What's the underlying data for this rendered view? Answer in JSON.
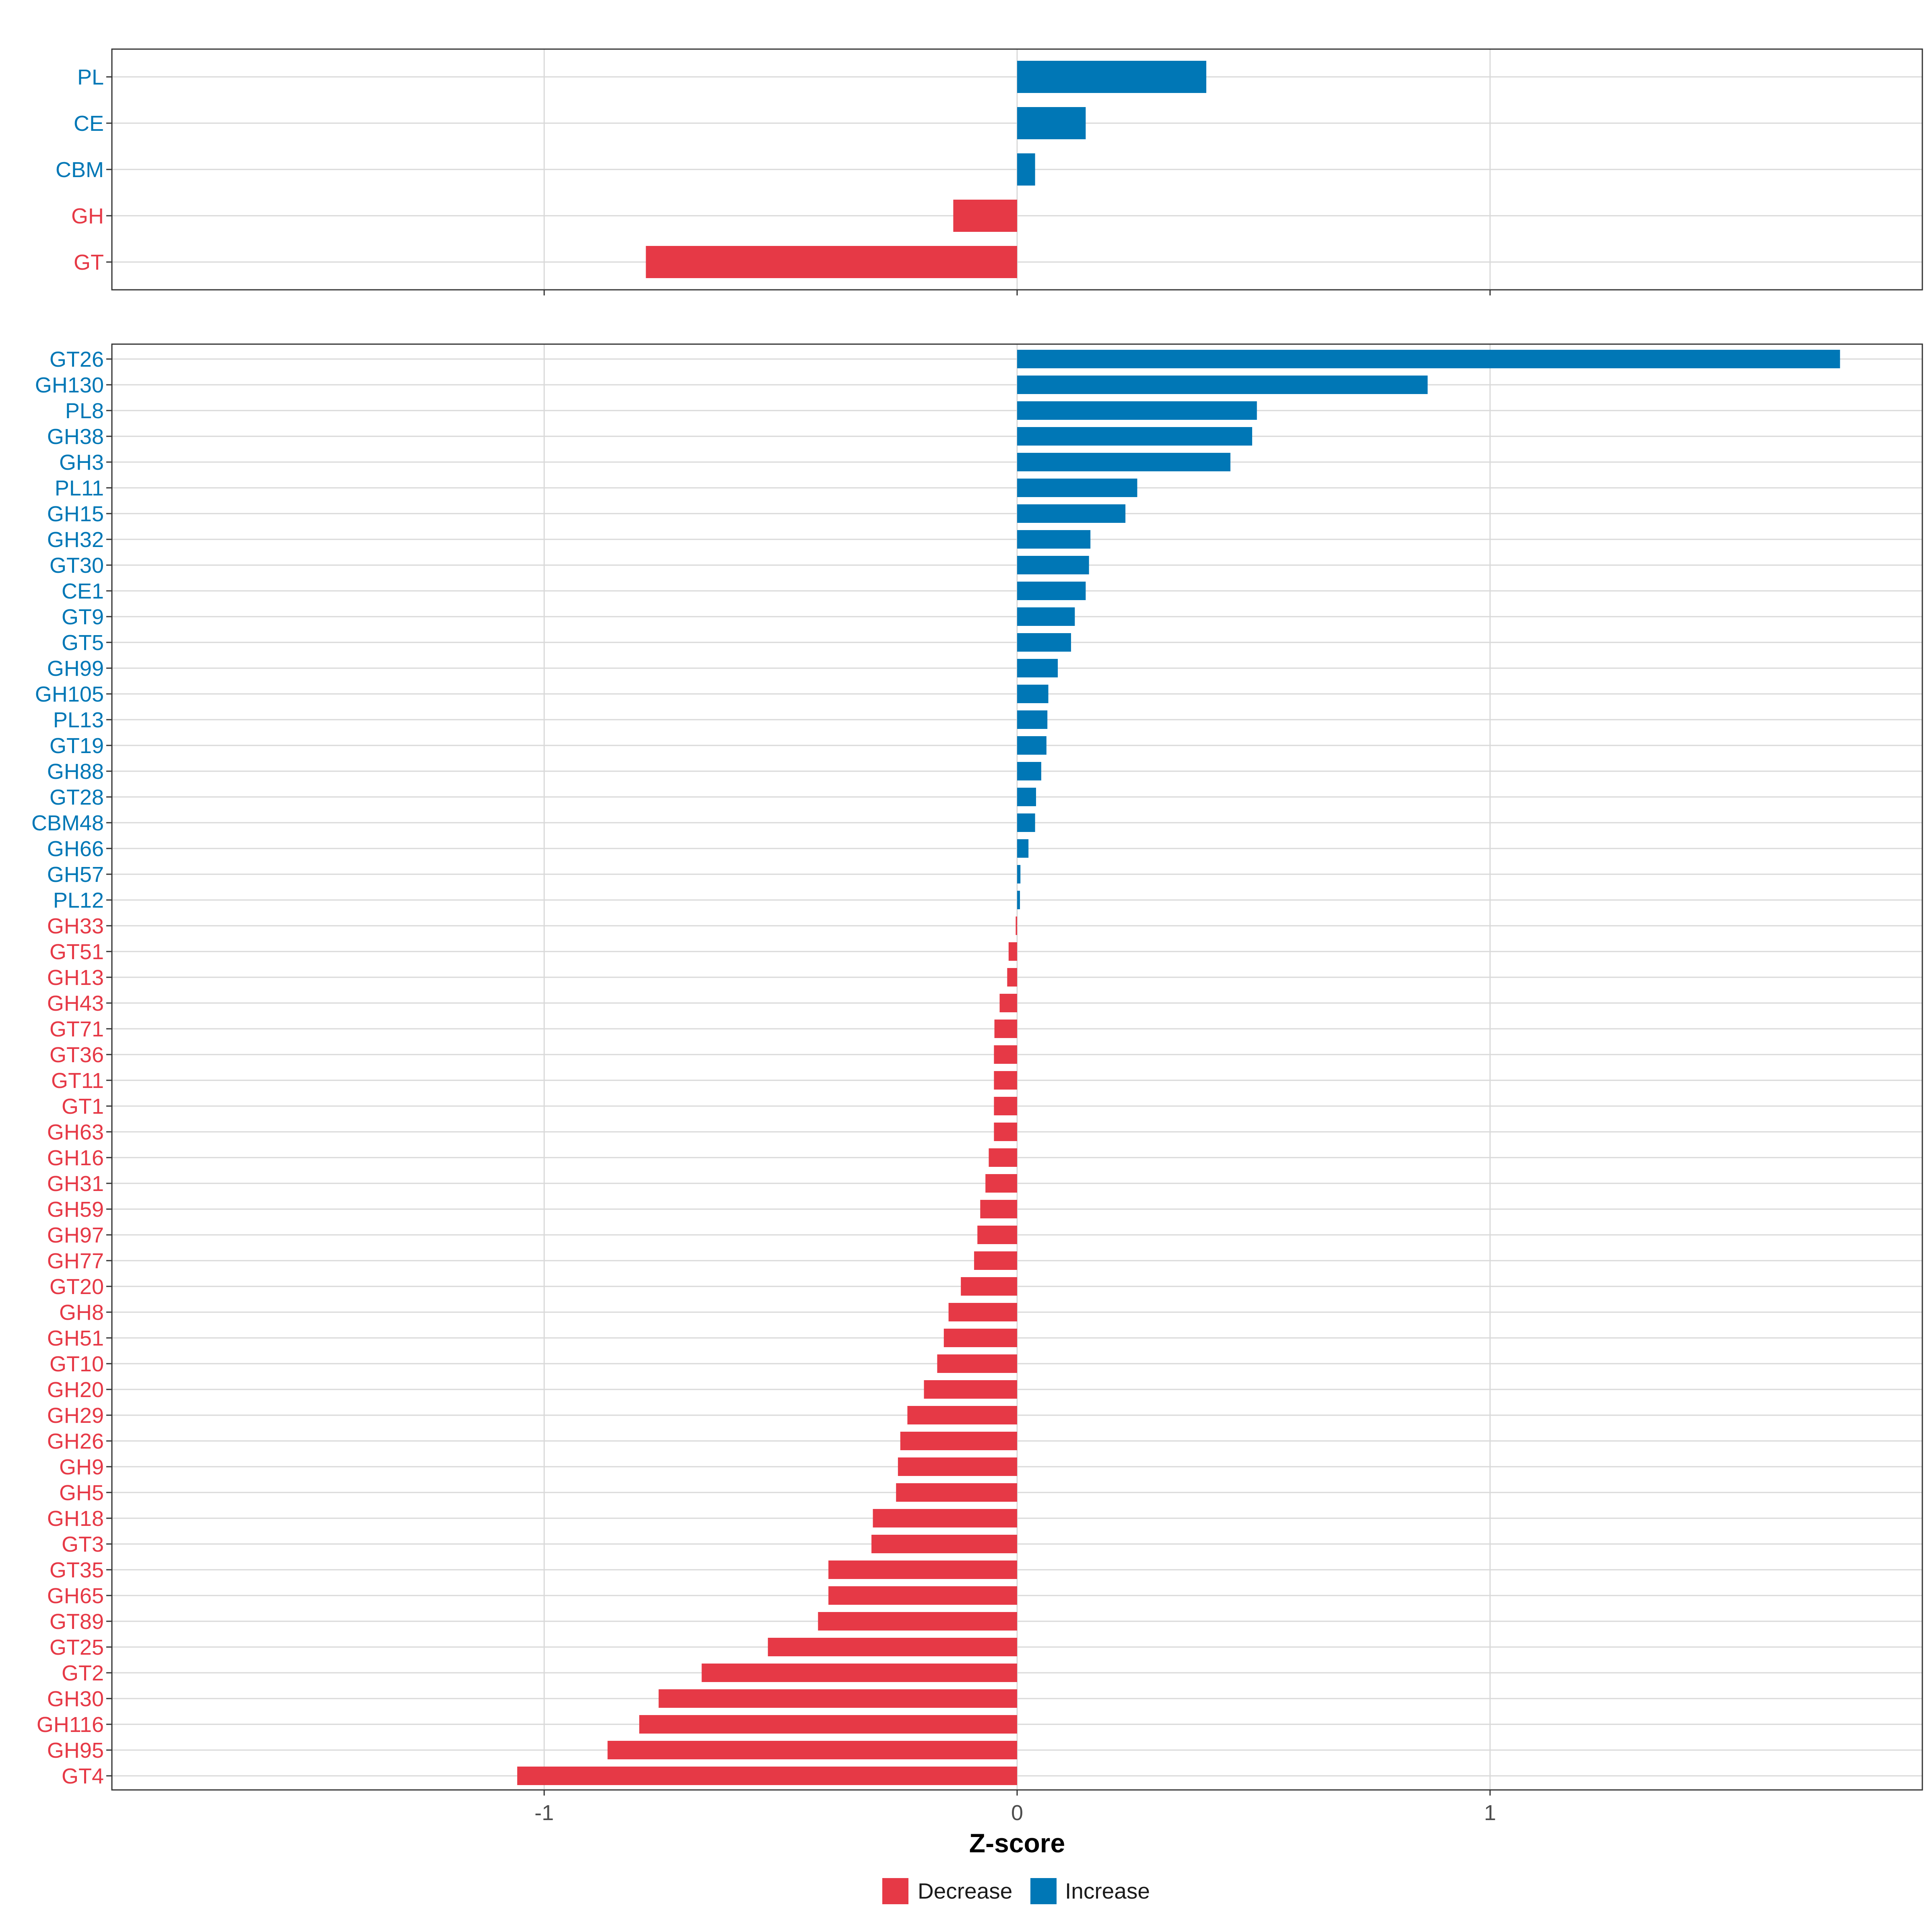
{
  "chart_data": {
    "type": "bar",
    "orientation": "horizontal",
    "xlabel": "Z-score",
    "xlim": [
      -1.91,
      1.91
    ],
    "x_ticks": [
      -1,
      0,
      1
    ],
    "x_tick_labels": [
      "-1",
      "0",
      "1"
    ],
    "grid": true,
    "legend_position": "bottom",
    "legend": [
      {
        "key": "decrease",
        "label": "Decrease",
        "color": "#E63946"
      },
      {
        "key": "increase",
        "label": "Increase",
        "color": "#0077B6"
      }
    ],
    "panels": [
      {
        "name": "class",
        "categories": [
          "PL",
          "CE",
          "CBM",
          "GH",
          "GT"
        ],
        "values": [
          0.4,
          0.145,
          0.038,
          -0.135,
          -0.785
        ]
      },
      {
        "name": "family",
        "categories": [
          "GT26",
          "GH130",
          "PL8",
          "GH38",
          "GH3",
          "PL11",
          "GH15",
          "GH32",
          "GT30",
          "CE1",
          "GT9",
          "GT5",
          "GH99",
          "GH105",
          "PL13",
          "GT19",
          "GH88",
          "GT28",
          "CBM48",
          "GH66",
          "GH57",
          "PL12",
          "GH33",
          "GT51",
          "GH13",
          "GH43",
          "GT71",
          "GT36",
          "GT11",
          "GT1",
          "GH63",
          "GH16",
          "GH31",
          "GH59",
          "GH97",
          "GH77",
          "GT20",
          "GH8",
          "GH51",
          "GT10",
          "GH20",
          "GH29",
          "GH26",
          "GH9",
          "GH5",
          "GH18",
          "GT3",
          "GT35",
          "GH65",
          "GT89",
          "GT25",
          "GT2",
          "GH30",
          "GH116",
          "GH95",
          "GT4"
        ],
        "values": [
          1.74,
          0.868,
          0.507,
          0.497,
          0.451,
          0.254,
          0.229,
          0.155,
          0.152,
          0.145,
          0.122,
          0.114,
          0.086,
          0.066,
          0.064,
          0.062,
          0.051,
          0.04,
          0.038,
          0.024,
          0.007,
          0.006,
          -0.003,
          -0.018,
          -0.021,
          -0.037,
          -0.048,
          -0.049,
          -0.049,
          -0.049,
          -0.049,
          -0.06,
          -0.067,
          -0.078,
          -0.084,
          -0.091,
          -0.119,
          -0.145,
          -0.155,
          -0.169,
          -0.197,
          -0.232,
          -0.247,
          -0.252,
          -0.256,
          -0.305,
          -0.308,
          -0.399,
          -0.399,
          -0.421,
          -0.527,
          -0.667,
          -0.758,
          -0.799,
          -0.866,
          -1.057
        ]
      }
    ]
  }
}
